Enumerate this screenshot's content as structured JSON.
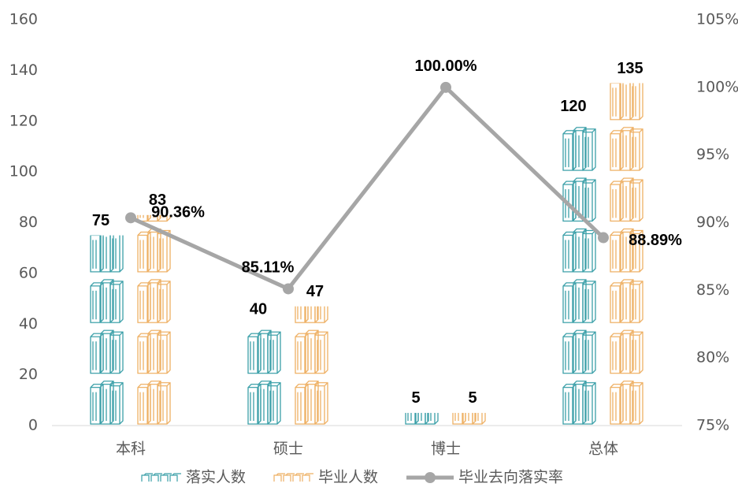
{
  "chart_data": {
    "type": "bar-line",
    "categories": [
      "本科",
      "硕士",
      "博士",
      "总体"
    ],
    "series": [
      {
        "name": "落实人数",
        "color": "#3a9fa8",
        "values": [
          75,
          40,
          5,
          120
        ]
      },
      {
        "name": "毕业人数",
        "color": "#eeb064",
        "values": [
          83,
          47,
          5,
          135
        ]
      },
      {
        "name": "毕业去向落实率",
        "color": "#a6a6a6",
        "axis": "y2",
        "values": [
          90.36,
          85.11,
          100,
          88.89
        ],
        "value_labels": [
          "90.36%",
          "85.11%",
          "100.00%",
          "88.89%"
        ]
      }
    ],
    "ylim": [
      0,
      160
    ],
    "yticks": [
      0,
      20,
      40,
      60,
      80,
      100,
      120,
      140,
      160
    ],
    "y2lim": [
      75,
      105
    ],
    "y2ticks": [
      {
        "value": 75,
        "label": "75%"
      },
      {
        "value": 80,
        "label": "80%"
      },
      {
        "value": 85,
        "label": "85%"
      },
      {
        "value": 90,
        "label": "90%"
      },
      {
        "value": 95,
        "label": "95%"
      },
      {
        "value": 100,
        "label": "100%"
      },
      {
        "value": 105,
        "label": "105%"
      }
    ],
    "legend": "bottom"
  }
}
